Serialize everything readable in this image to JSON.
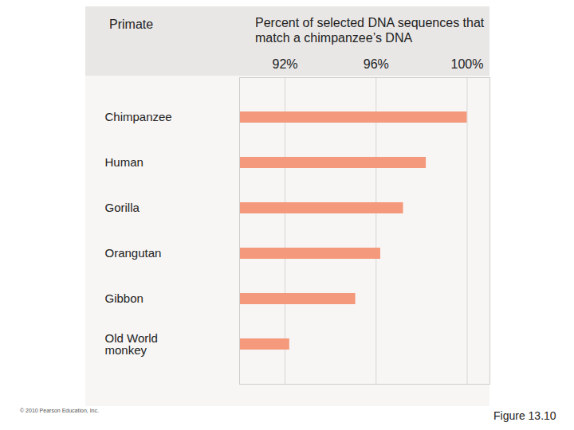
{
  "chart_data": {
    "type": "bar",
    "orientation": "horizontal",
    "x_label": "Percent of selected DNA sequences that match a chimpanzee’s DNA",
    "y_label": "Primate",
    "categories": [
      "Chimpanzee",
      "Human",
      "Gorilla",
      "Orangutan",
      "Gibbon",
      "Old World monkey"
    ],
    "values": [
      100,
      98.2,
      97.2,
      96.2,
      95.1,
      92.2
    ],
    "color": "#f4997c",
    "xlim": [
      90,
      101
    ],
    "xticks": [
      {
        "value": 92,
        "label": "92%"
      },
      {
        "value": 96,
        "label": "96%"
      },
      {
        "value": 100,
        "label": "100%"
      }
    ],
    "grid": true,
    "annotations": [
      "© 2010 Pearson Education, Inc.",
      "Figure 13.10"
    ]
  }
}
